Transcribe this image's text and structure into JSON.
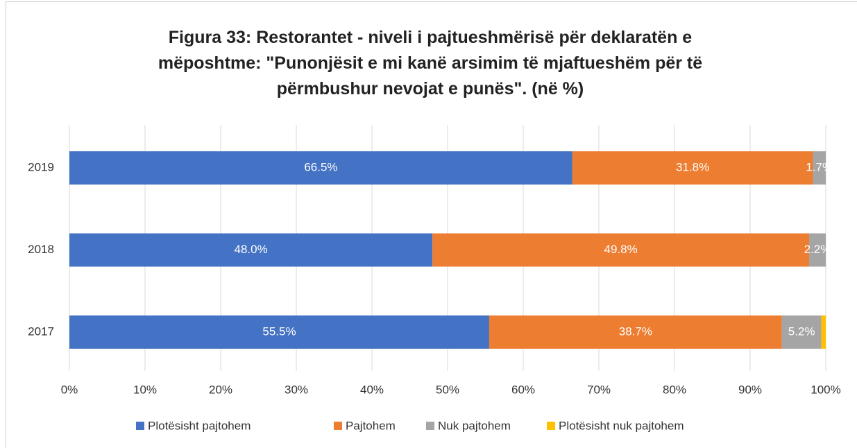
{
  "chart_data": {
    "type": "stacked-bar-horizontal",
    "title": "Figura 33: Restorantet - niveli i pajtueshmërisë për deklaratën e mëposhtme: \"Punonjësit e mi kanë arsimim të mjaftueshëm për të përmbushur nevojat e punës\". (në %)",
    "categories": [
      "2019",
      "2018",
      "2017"
    ],
    "series": [
      {
        "name": "Plotësisht pajtohem",
        "color": "#4472c4",
        "values": [
          66.5,
          48.0,
          55.5
        ],
        "value_labels": [
          "66.5%",
          "48.0%",
          "55.5%"
        ]
      },
      {
        "name": "Pajtohem",
        "color": "#ed7d31",
        "values": [
          31.8,
          49.8,
          38.7
        ],
        "value_labels": [
          "31.8%",
          "49.8%",
          "38.7%"
        ]
      },
      {
        "name": "Nuk pajtohem",
        "color": "#a5a5a5",
        "values": [
          1.7,
          2.2,
          5.2
        ],
        "value_labels": [
          "1.7%",
          "2.2%",
          "5.2%"
        ]
      },
      {
        "name": "Plotësisht nuk pajtohem",
        "color": "#ffc000",
        "values": [
          0,
          0,
          0.6
        ]
      }
    ],
    "xlim": [
      0,
      100
    ],
    "xticks": [
      {
        "value": 0,
        "label": "0%"
      },
      {
        "value": 10,
        "label": "10%"
      },
      {
        "value": 20,
        "label": "20%"
      },
      {
        "value": 30,
        "label": "30%"
      },
      {
        "value": 40,
        "label": "40%"
      },
      {
        "value": 50,
        "label": "50%"
      },
      {
        "value": 60,
        "label": "60%"
      },
      {
        "value": 70,
        "label": "70%"
      },
      {
        "value": 80,
        "label": "80%"
      },
      {
        "value": 90,
        "label": "90%"
      },
      {
        "value": 100,
        "label": "100%"
      }
    ],
    "grid": true,
    "legend": "bottom"
  }
}
